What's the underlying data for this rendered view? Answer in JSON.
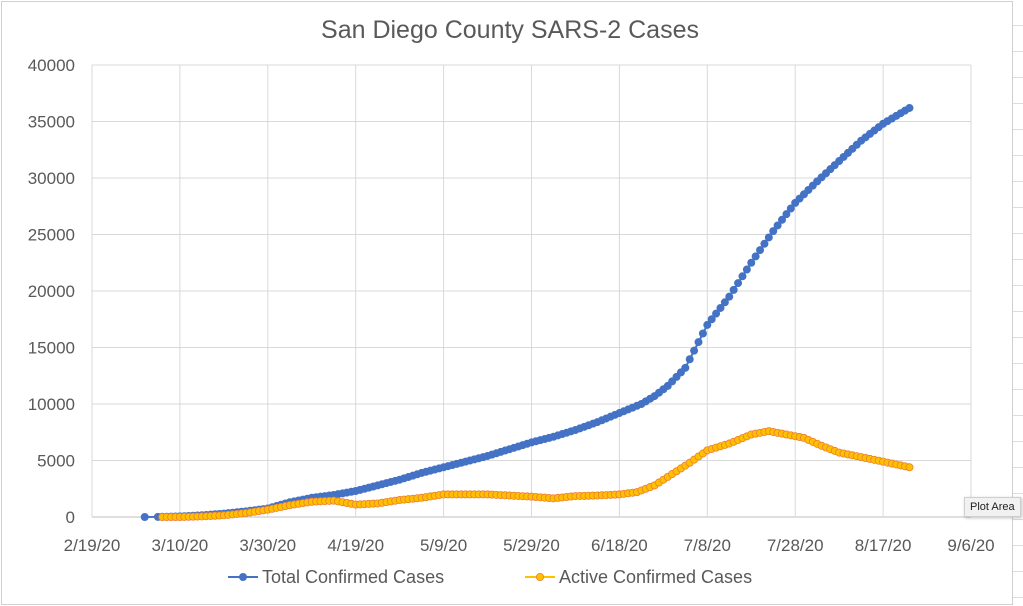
{
  "chart_data": {
    "type": "line",
    "title": "San Diego County SARS-2 Cases",
    "xlabel": "",
    "ylabel": "",
    "x_start_date": "2/19/20",
    "x_tick_labels": [
      "2/19/20",
      "3/10/20",
      "3/30/20",
      "4/19/20",
      "5/9/20",
      "5/29/20",
      "6/18/20",
      "7/8/20",
      "7/28/20",
      "8/17/20",
      "9/6/20"
    ],
    "xlim_days_since_2_19_20": [
      0,
      200
    ],
    "y_tick_labels": [
      "0",
      "5000",
      "10000",
      "15000",
      "20000",
      "25000",
      "30000",
      "35000",
      "40000"
    ],
    "ylim": [
      0,
      40000
    ],
    "grid": true,
    "legend_position": "bottom",
    "series": [
      {
        "name": "Total Confirmed Cases",
        "color": "#4472C4",
        "points": [
          [
            12,
            0
          ],
          [
            15,
            10
          ],
          [
            20,
            50
          ],
          [
            25,
            150
          ],
          [
            30,
            300
          ],
          [
            35,
            500
          ],
          [
            40,
            750
          ],
          [
            45,
            1300
          ],
          [
            50,
            1700
          ],
          [
            55,
            1950
          ],
          [
            60,
            2300
          ],
          [
            65,
            2800
          ],
          [
            70,
            3300
          ],
          [
            75,
            3900
          ],
          [
            80,
            4400
          ],
          [
            85,
            4900
          ],
          [
            90,
            5400
          ],
          [
            95,
            6000
          ],
          [
            100,
            6600
          ],
          [
            105,
            7100
          ],
          [
            110,
            7700
          ],
          [
            115,
            8400
          ],
          [
            120,
            9200
          ],
          [
            125,
            10000
          ],
          [
            128,
            10700
          ],
          [
            131,
            11600
          ],
          [
            135,
            13200
          ],
          [
            140,
            17000
          ],
          [
            145,
            19500
          ],
          [
            150,
            22500
          ],
          [
            155,
            25300
          ],
          [
            160,
            27800
          ],
          [
            165,
            29700
          ],
          [
            170,
            31500
          ],
          [
            175,
            33300
          ],
          [
            180,
            34800
          ],
          [
            186,
            36200
          ]
        ]
      },
      {
        "name": "Active Confirmed Cases",
        "color": "#FFC000",
        "points": [
          [
            16,
            0
          ],
          [
            20,
            0
          ],
          [
            25,
            50
          ],
          [
            30,
            150
          ],
          [
            35,
            350
          ],
          [
            40,
            650
          ],
          [
            45,
            1050
          ],
          [
            50,
            1350
          ],
          [
            55,
            1450
          ],
          [
            60,
            1100
          ],
          [
            65,
            1200
          ],
          [
            70,
            1500
          ],
          [
            75,
            1700
          ],
          [
            80,
            2000
          ],
          [
            85,
            2000
          ],
          [
            90,
            2000
          ],
          [
            95,
            1900
          ],
          [
            100,
            1800
          ],
          [
            105,
            1650
          ],
          [
            110,
            1850
          ],
          [
            115,
            1900
          ],
          [
            120,
            2000
          ],
          [
            124,
            2200
          ],
          [
            128,
            2800
          ],
          [
            132,
            3800
          ],
          [
            136,
            4800
          ],
          [
            140,
            5900
          ],
          [
            145,
            6500
          ],
          [
            150,
            7300
          ],
          [
            154,
            7600
          ],
          [
            158,
            7300
          ],
          [
            162,
            7000
          ],
          [
            166,
            6300
          ],
          [
            170,
            5700
          ],
          [
            175,
            5300
          ],
          [
            180,
            4900
          ],
          [
            186,
            4400
          ]
        ]
      }
    ]
  },
  "ui": {
    "tooltip": "Plot Area"
  }
}
